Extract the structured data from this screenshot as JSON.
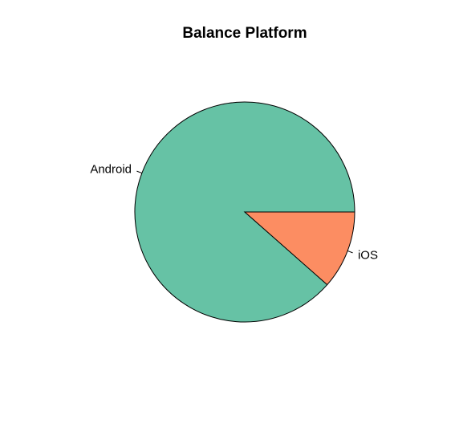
{
  "chart_data": {
    "type": "pie",
    "title": "Balance Platform",
    "slices": [
      {
        "label": "Android",
        "value": 0.885,
        "color": "#66C2A5"
      },
      {
        "label": "iOS",
        "value": 0.115,
        "color": "#FC8D62"
      }
    ],
    "start": "3 o'clock",
    "direction": "counterclockwise",
    "border_color": "#000000"
  }
}
